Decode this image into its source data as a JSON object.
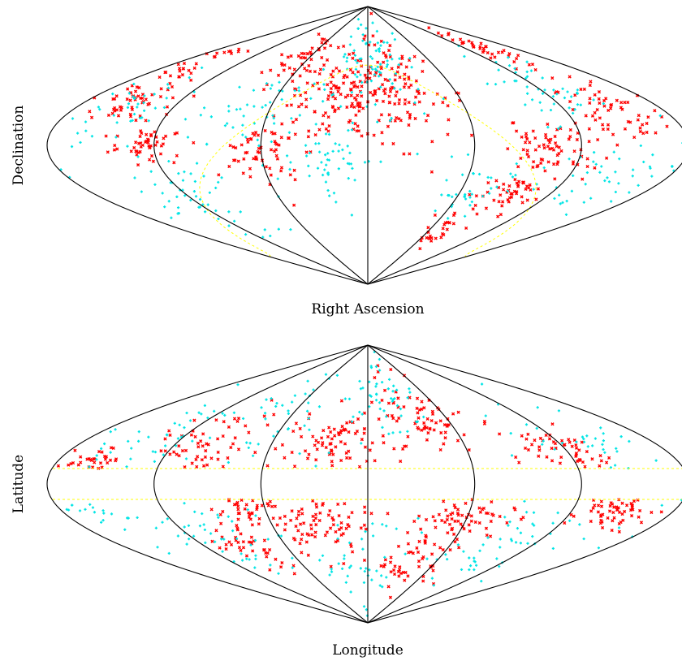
{
  "chart_data": [
    {
      "type": "scatter",
      "projection": "sinusoidal",
      "xlabel": "Right Ascension",
      "ylabel": "Declination",
      "xlim": [
        -180,
        180
      ],
      "ylim": [
        -90,
        90
      ],
      "meridians": [
        -180,
        -120,
        -60,
        0,
        60,
        120,
        180
      ],
      "grid": false,
      "colors": {
        "series_a": "#ff0000",
        "series_b": "#00e5e5",
        "boundary": "#ffff00",
        "outline": "#000000"
      },
      "boundary_curve": "galactic-plane band (dashed yellow)",
      "series": [
        {
          "color": "#ff0000",
          "marker": "x",
          "clusters": [
            {
              "lon": -140,
              "lat": 62,
              "n": 40,
              "spread": 10
            },
            {
              "lon": -150,
              "lat": 20,
              "n": 60,
              "spread": 14
            },
            {
              "lon": -105,
              "lat": 0,
              "n": 70,
              "spread": 14
            },
            {
              "lon": -95,
              "lat": -30,
              "n": 55,
              "spread": 10
            },
            {
              "lon": -70,
              "lat": -55,
              "n": 25,
              "spread": 8
            },
            {
              "lon": -15,
              "lat": 35,
              "n": 140,
              "spread": 22
            },
            {
              "lon": 25,
              "lat": 30,
              "n": 110,
              "spread": 20
            },
            {
              "lon": 60,
              "lat": -5,
              "n": 60,
              "spread": 12
            },
            {
              "lon": 65,
              "lat": 55,
              "n": 40,
              "spread": 12
            },
            {
              "lon": 125,
              "lat": 0,
              "n": 50,
              "spread": 10
            },
            {
              "lon": 150,
              "lat": 30,
              "n": 60,
              "spread": 12
            },
            {
              "lon": 160,
              "lat": 55,
              "n": 25,
              "spread": 8
            }
          ]
        },
        {
          "color": "#00e5e5",
          "marker": "+",
          "clusters": [
            {
              "lon": -130,
              "lat": 35,
              "n": 50,
              "spread": 18
            },
            {
              "lon": -150,
              "lat": -20,
              "n": 45,
              "spread": 16
            },
            {
              "lon": -70,
              "lat": -30,
              "n": 40,
              "spread": 16
            },
            {
              "lon": 0,
              "lat": 50,
              "n": 90,
              "spread": 22
            },
            {
              "lon": 20,
              "lat": -10,
              "n": 55,
              "spread": 16
            },
            {
              "lon": 70,
              "lat": 20,
              "n": 45,
              "spread": 18
            },
            {
              "lon": 120,
              "lat": -35,
              "n": 50,
              "spread": 16
            },
            {
              "lon": 150,
              "lat": 20,
              "n": 45,
              "spread": 18
            }
          ]
        }
      ],
      "empty_region": "galactic-plane band"
    },
    {
      "type": "scatter",
      "projection": "sinusoidal",
      "xlabel": "Longitude",
      "ylabel": "Latitude",
      "xlim": [
        -180,
        180
      ],
      "ylim": [
        -90,
        90
      ],
      "meridians": [
        -180,
        -120,
        -60,
        0,
        60,
        120,
        180
      ],
      "grid": false,
      "boundary_lats": [
        10,
        -10
      ],
      "colors": {
        "series_a": "#ff0000",
        "series_b": "#00e5e5",
        "boundary": "#ffff00",
        "outline": "#000000"
      },
      "series": [
        {
          "color": "#ff0000",
          "marker": "x",
          "clusters": [
            {
              "lon": -120,
              "lat": 20,
              "n": 60,
              "spread": 12
            },
            {
              "lon": -40,
              "lat": 40,
              "n": 80,
              "spread": 18
            },
            {
              "lon": 20,
              "lat": 25,
              "n": 80,
              "spread": 16
            },
            {
              "lon": 100,
              "lat": 25,
              "n": 70,
              "spread": 16
            },
            {
              "lon": 160,
              "lat": 15,
              "n": 40,
              "spread": 8
            },
            {
              "lon": -150,
              "lat": -18,
              "n": 70,
              "spread": 10
            },
            {
              "lon": -60,
              "lat": -20,
              "n": 80,
              "spread": 14
            },
            {
              "lon": -40,
              "lat": -50,
              "n": 50,
              "spread": 14
            },
            {
              "lon": 30,
              "lat": -25,
              "n": 80,
              "spread": 16
            },
            {
              "lon": 70,
              "lat": -15,
              "n": 50,
              "spread": 10
            },
            {
              "lon": 90,
              "lat": -40,
              "n": 40,
              "spread": 12
            }
          ]
        },
        {
          "color": "#00e5e5",
          "marker": "+",
          "clusters": [
            {
              "lon": -140,
              "lat": 30,
              "n": 40,
              "spread": 20
            },
            {
              "lon": -20,
              "lat": 55,
              "n": 50,
              "spread": 20
            },
            {
              "lon": 60,
              "lat": 45,
              "n": 45,
              "spread": 20
            },
            {
              "lon": 140,
              "lat": 30,
              "n": 40,
              "spread": 18
            },
            {
              "lon": -100,
              "lat": -40,
              "n": 50,
              "spread": 20
            },
            {
              "lon": 0,
              "lat": -50,
              "n": 45,
              "spread": 20
            },
            {
              "lon": 100,
              "lat": -35,
              "n": 50,
              "spread": 20
            },
            {
              "lon": 160,
              "lat": -20,
              "n": 25,
              "spread": 12
            }
          ]
        }
      ],
      "empty_region": "|latitude| < 10"
    }
  ]
}
